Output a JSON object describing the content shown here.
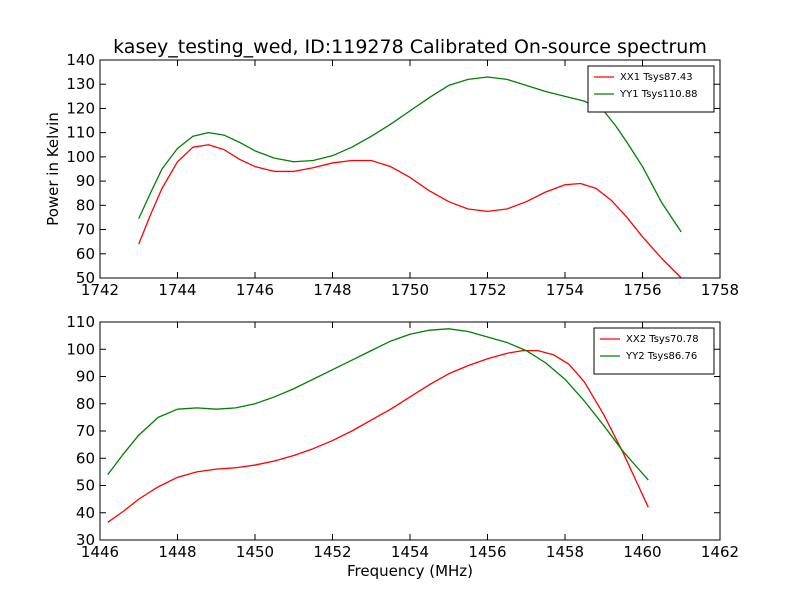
{
  "title": "kasey_testing_wed, ID:119278 Calibrated On-source spectrum",
  "chart_data": [
    {
      "type": "line",
      "xlabel": "",
      "ylabel": "Power in Kelvin",
      "xlim": [
        1742,
        1758
      ],
      "ylim": [
        50,
        140
      ],
      "xticks": [
        "1742",
        "1744",
        "1746",
        "1748",
        "1750",
        "1752",
        "1754",
        "1756",
        "1758"
      ],
      "yticks": [
        "50",
        "60",
        "70",
        "80",
        "90",
        "100",
        "110",
        "120",
        "130",
        "140"
      ],
      "grid": false,
      "legend_position": "top-right",
      "series": [
        {
          "name": "XX1 Tsys87.43",
          "color": "#ff0000",
          "x": [
            1743.0,
            1743.3,
            1743.6,
            1744.0,
            1744.4,
            1744.8,
            1745.2,
            1745.6,
            1746.0,
            1746.5,
            1747.0,
            1747.5,
            1748.0,
            1748.5,
            1749.0,
            1749.5,
            1750.0,
            1750.5,
            1751.0,
            1751.5,
            1752.0,
            1752.5,
            1753.0,
            1753.5,
            1754.0,
            1754.4,
            1754.8,
            1755.2,
            1755.6,
            1756.0,
            1756.5,
            1757.0
          ],
          "values": [
            64,
            76,
            87,
            98,
            104,
            105,
            103,
            99,
            96,
            94,
            94,
            95.5,
            97.5,
            98.5,
            98.5,
            96,
            91.5,
            86,
            81.5,
            78.5,
            77.5,
            78.5,
            81.5,
            85.5,
            88.5,
            89,
            87,
            82,
            75,
            67,
            58,
            50
          ]
        },
        {
          "name": "YY1 Tsys110.88",
          "color": "#008000",
          "x": [
            1743.0,
            1743.3,
            1743.6,
            1744.0,
            1744.4,
            1744.8,
            1745.2,
            1745.6,
            1746.0,
            1746.5,
            1747.0,
            1747.5,
            1748.0,
            1748.5,
            1749.0,
            1749.5,
            1750.0,
            1750.5,
            1751.0,
            1751.5,
            1752.0,
            1752.5,
            1753.0,
            1753.5,
            1754.0,
            1754.5,
            1755.0,
            1755.3,
            1755.6,
            1756.0,
            1756.5,
            1757.0
          ],
          "values": [
            74.5,
            85,
            95,
            103.5,
            108.5,
            110,
            109,
            106,
            102.5,
            99.5,
            98,
            98.5,
            100.5,
            104,
            108.5,
            113.5,
            119,
            124.5,
            129.5,
            132,
            133,
            132,
            129.5,
            127,
            125,
            123,
            119,
            113,
            106,
            96,
            81,
            69
          ]
        }
      ]
    },
    {
      "type": "line",
      "xlabel": "Frequency (MHz)",
      "ylabel": "",
      "xlim": [
        1446,
        1462
      ],
      "ylim": [
        30,
        110
      ],
      "xticks": [
        "1446",
        "1448",
        "1450",
        "1452",
        "1454",
        "1456",
        "1458",
        "1460",
        "1462"
      ],
      "yticks": [
        "30",
        "40",
        "50",
        "60",
        "70",
        "80",
        "90",
        "100",
        "110"
      ],
      "grid": false,
      "legend_position": "top-right",
      "series": [
        {
          "name": "XX2 Tsys70.78",
          "color": "#ff0000",
          "x": [
            1446.2,
            1446.6,
            1447.0,
            1447.5,
            1448.0,
            1448.5,
            1449.0,
            1449.5,
            1450.0,
            1450.5,
            1451.0,
            1451.5,
            1452.0,
            1452.5,
            1453.0,
            1453.5,
            1454.0,
            1454.5,
            1455.0,
            1455.5,
            1456.0,
            1456.5,
            1456.9,
            1457.3,
            1457.7,
            1458.1,
            1458.5,
            1459.0,
            1459.5,
            1460.15
          ],
          "values": [
            36.5,
            40.5,
            45,
            49.5,
            53,
            55,
            56,
            56.5,
            57.5,
            59,
            61,
            63.5,
            66.5,
            70,
            74,
            78,
            82.5,
            87,
            91,
            94,
            96.5,
            98.5,
            99.5,
            99.5,
            98,
            94.5,
            88,
            76,
            62,
            42
          ]
        },
        {
          "name": "YY2 Tsys86.76",
          "color": "#008000",
          "x": [
            1446.2,
            1446.6,
            1447.0,
            1447.5,
            1448.0,
            1448.5,
            1449.0,
            1449.5,
            1450.0,
            1450.5,
            1451.0,
            1451.5,
            1452.0,
            1452.5,
            1453.0,
            1453.5,
            1454.0,
            1454.5,
            1455.0,
            1455.5,
            1456.0,
            1456.5,
            1457.0,
            1457.5,
            1458.0,
            1458.5,
            1459.0,
            1459.5,
            1460.15
          ],
          "values": [
            54,
            61.5,
            68.5,
            75,
            78,
            78.5,
            78,
            78.5,
            80,
            82.5,
            85.5,
            89,
            92.5,
            96,
            99.5,
            103,
            105.5,
            107,
            107.5,
            106.5,
            104.5,
            102.5,
            99.5,
            95,
            89,
            81,
            72,
            62.5,
            52
          ]
        }
      ]
    }
  ]
}
